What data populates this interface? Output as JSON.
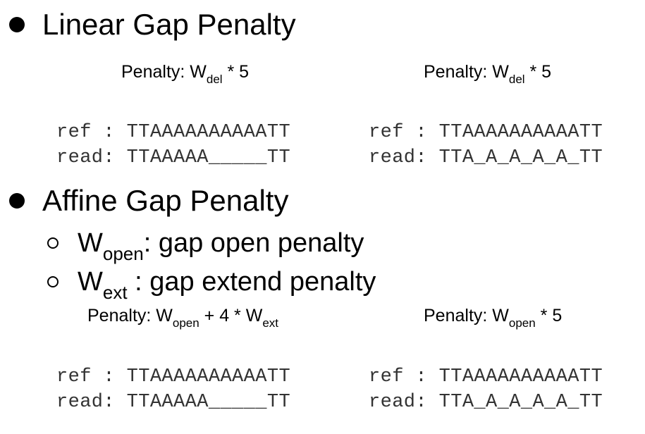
{
  "linear": {
    "heading": "Linear Gap Penalty",
    "left": {
      "penalty_prefix": "Penalty: W",
      "penalty_sub": "del",
      "penalty_suffix": " * 5",
      "ref_label": "ref :",
      "ref_seq": "TTAAAAAAAAAATT",
      "read_label": "read:",
      "read_seq": "TTAAAAA_____TT"
    },
    "right": {
      "penalty_prefix": "Penalty: W",
      "penalty_sub": "del",
      "penalty_suffix": " * 5",
      "ref_label": "ref :",
      "ref_seq": "TTAAAAAAAAAATT",
      "read_label": "read:",
      "read_seq": "TTA_A_A_A_A_TT"
    }
  },
  "affine": {
    "heading": "Affine Gap Penalty",
    "items": [
      {
        "symbol": "W",
        "sub": "open",
        "text": ": gap open penalty"
      },
      {
        "symbol": "W",
        "sub": "ext",
        "text": " : gap extend penalty"
      }
    ],
    "left": {
      "penalty_prefix": "Penalty: W",
      "penalty_sub": "open",
      "penalty_mid": " + 4 * W",
      "penalty_sub2": "ext",
      "ref_label": "ref :",
      "ref_seq": "TTAAAAAAAAAATT",
      "read_label": "read:",
      "read_seq": "TTAAAAA_____TT"
    },
    "right": {
      "penalty_prefix": "Penalty: W",
      "penalty_sub": "open",
      "penalty_suffix": " * 5",
      "ref_label": "ref :",
      "ref_seq": "TTAAAAAAAAAATT",
      "read_label": "read:",
      "read_seq": "TTA_A_A_A_A_TT"
    }
  }
}
